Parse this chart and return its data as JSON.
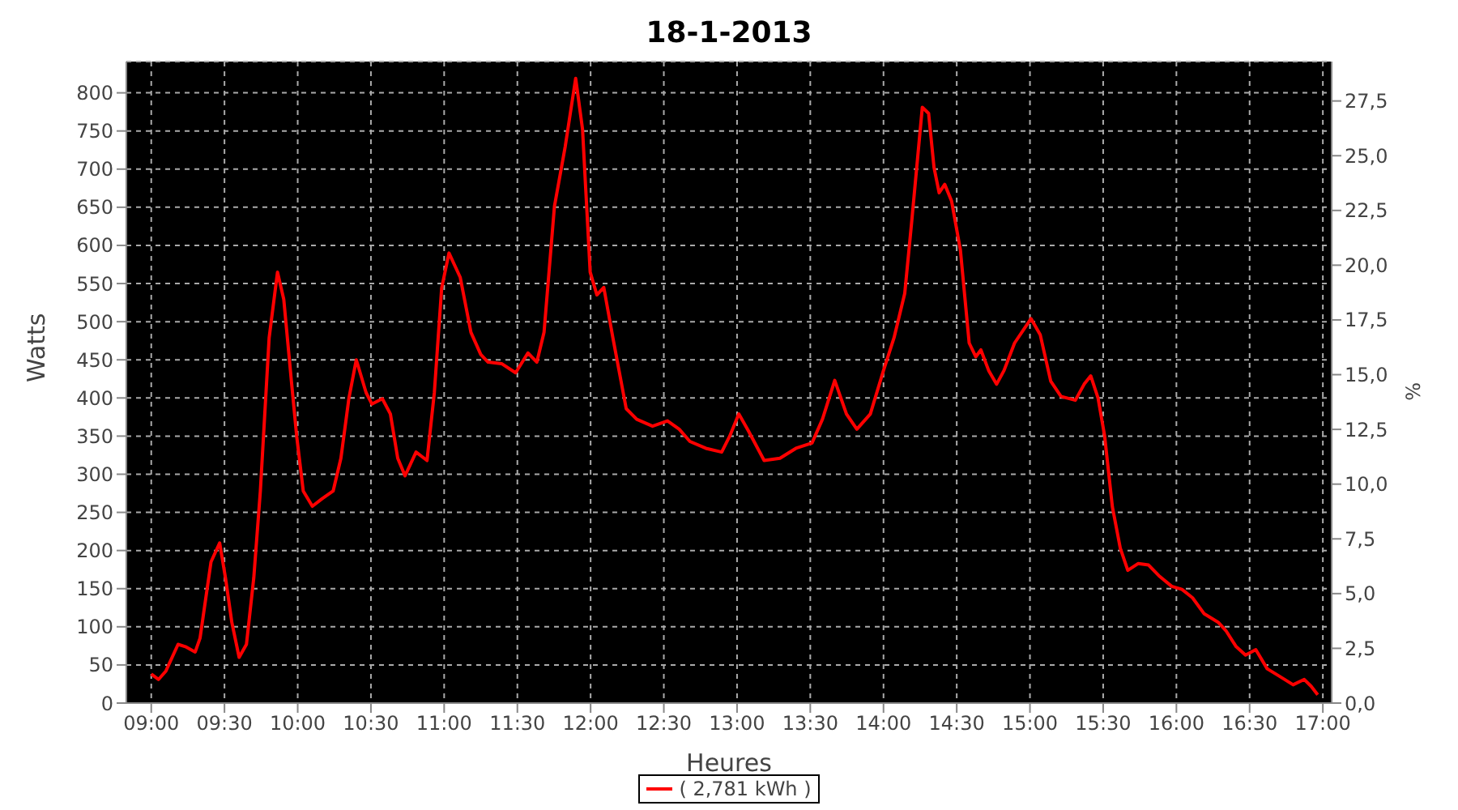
{
  "chart_data": {
    "type": "line",
    "title": "18-1-2013",
    "xlabel": "Heures",
    "ylabel": "Watts",
    "y2label": "%",
    "x": [
      9.0,
      9.05,
      9.1,
      9.183,
      9.233,
      9.3,
      9.333,
      9.408,
      9.467,
      9.507,
      9.55,
      9.6,
      9.65,
      9.7,
      9.745,
      9.805,
      9.862,
      9.905,
      9.957,
      9.993,
      10.038,
      10.1,
      10.167,
      10.242,
      10.295,
      10.35,
      10.4,
      10.467,
      10.507,
      10.578,
      10.633,
      10.683,
      10.733,
      10.808,
      10.883,
      10.933,
      10.983,
      11.033,
      11.11,
      11.183,
      11.25,
      11.3,
      11.392,
      11.488,
      11.572,
      11.633,
      11.682,
      11.753,
      11.827,
      11.898,
      11.945,
      11.997,
      12.043,
      12.09,
      12.152,
      12.243,
      12.315,
      12.423,
      12.525,
      12.605,
      12.678,
      12.787,
      12.895,
      12.95,
      13.012,
      13.077,
      13.185,
      13.293,
      13.402,
      13.512,
      13.583,
      13.667,
      13.747,
      13.818,
      13.91,
      14.0,
      14.072,
      14.145,
      14.192,
      14.265,
      14.308,
      14.345,
      14.38,
      14.418,
      14.465,
      14.525,
      14.585,
      14.63,
      14.665,
      14.718,
      14.772,
      14.823,
      14.895,
      15.007,
      15.07,
      15.142,
      15.212,
      15.31,
      15.37,
      15.415,
      15.465,
      15.51,
      15.563,
      15.617,
      15.668,
      15.74,
      15.81,
      15.88,
      15.968,
      16.038,
      16.11,
      16.19,
      16.285,
      16.338,
      16.408,
      16.472,
      16.542,
      16.62,
      16.697,
      16.797,
      16.873,
      16.92,
      16.965
    ],
    "series": [
      {
        "name": "( 2,781 kWh )",
        "color": "#ff0000",
        "values": [
          38,
          31,
          42,
          77,
          74,
          67,
          85,
          185,
          210,
          164,
          106,
          60,
          77,
          164,
          278,
          479,
          565,
          529,
          422,
          350,
          278,
          258,
          268,
          278,
          321,
          400,
          450,
          407,
          392,
          399,
          379,
          321,
          298,
          329,
          318,
          407,
          544,
          590,
          558,
          486,
          457,
          447,
          445,
          433,
          459,
          447,
          486,
          651,
          730,
          819,
          752,
          565,
          535,
          545,
          479,
          386,
          372,
          363,
          370,
          359,
          343,
          334,
          329,
          350,
          379,
          357,
          318,
          321,
          334,
          341,
          372,
          423,
          379,
          359,
          379,
          436,
          479,
          537,
          630,
          781,
          773,
          702,
          669,
          680,
          658,
          594,
          472,
          454,
          463,
          436,
          418,
          436,
          472,
          504,
          483,
          422,
          402,
          397,
          418,
          429,
          400,
          350,
          257,
          203,
          174,
          183,
          181,
          167,
          153,
          149,
          138,
          117,
          106,
          95,
          74,
          63,
          70,
          45,
          36,
          24,
          31,
          22,
          11
        ]
      }
    ],
    "xlim": [
      8.83,
      17.06
    ],
    "xticks": [
      {
        "value": 9,
        "label": "09:00"
      },
      {
        "value": 9.5,
        "label": "09:30"
      },
      {
        "value": 10,
        "label": "10:00"
      },
      {
        "value": 10.5,
        "label": "10:30"
      },
      {
        "value": 11,
        "label": "11:00"
      },
      {
        "value": 11.5,
        "label": "11:30"
      },
      {
        "value": 12,
        "label": "12:00"
      },
      {
        "value": 12.5,
        "label": "12:30"
      },
      {
        "value": 13,
        "label": "13:00"
      },
      {
        "value": 13.5,
        "label": "13:30"
      },
      {
        "value": 14,
        "label": "14:00"
      },
      {
        "value": 14.5,
        "label": "14:30"
      },
      {
        "value": 15,
        "label": "15:00"
      },
      {
        "value": 15.5,
        "label": "15:30"
      },
      {
        "value": 16,
        "label": "16:00"
      },
      {
        "value": 16.5,
        "label": "16:30"
      },
      {
        "value": 17,
        "label": "17:00"
      }
    ],
    "ylim": [
      0,
      841
    ],
    "yticks": [
      0,
      50,
      100,
      150,
      200,
      250,
      300,
      350,
      400,
      450,
      500,
      550,
      600,
      650,
      700,
      750,
      800
    ],
    "y2lim": [
      0,
      29.3
    ],
    "y2ticks": [
      {
        "value": 0,
        "label": "0,0"
      },
      {
        "value": 2.5,
        "label": "2,5"
      },
      {
        "value": 5,
        "label": "5,0"
      },
      {
        "value": 7.5,
        "label": "7,5"
      },
      {
        "value": 10,
        "label": "10,0"
      },
      {
        "value": 12.5,
        "label": "12,5"
      },
      {
        "value": 15,
        "label": "15,0"
      },
      {
        "value": 17.5,
        "label": "17,5"
      },
      {
        "value": 20,
        "label": "20,0"
      },
      {
        "value": 22.5,
        "label": "22,5"
      },
      {
        "value": 25,
        "label": "25,0"
      },
      {
        "value": 27.5,
        "label": "27,5"
      }
    ],
    "grid": true,
    "legend": "bottom",
    "marker": "none",
    "line_style": "solid"
  }
}
